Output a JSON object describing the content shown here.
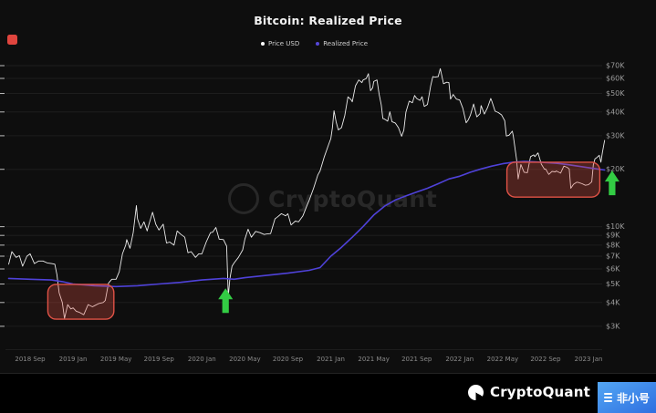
{
  "header": {
    "title": "Bitcoin: Realized Price"
  },
  "legend": {
    "items": [
      {
        "label": "Price USD",
        "color": "#ffffff"
      },
      {
        "label": "Realized Price",
        "color": "#5547d8"
      }
    ]
  },
  "watermark": {
    "text": "CryptoQuant"
  },
  "footer": {
    "brand": "CryptoQuant",
    "badge_text": "非小号"
  },
  "chart_data": {
    "type": "line",
    "title": "Bitcoin: Realized Price",
    "y_scale": "log",
    "ylim": [
      2800,
      78000
    ],
    "x_unit": "months since 2018-09",
    "y_ticks": [
      [
        "$70K",
        70000
      ],
      [
        "$60K",
        60000
      ],
      [
        "$50K",
        50000
      ],
      [
        "$40K",
        40000
      ],
      [
        "$30K",
        30000
      ],
      [
        "$20K",
        20000
      ],
      [
        "$10K",
        10000
      ],
      [
        "$9K",
        9000
      ],
      [
        "$8K",
        8000
      ],
      [
        "$7K",
        7000
      ],
      [
        "$6K",
        6000
      ],
      [
        "$5K",
        5000
      ],
      [
        "$4K",
        4000
      ],
      [
        "$3K",
        3000
      ]
    ],
    "x_ticks": [
      [
        "2018 Sep",
        0
      ],
      [
        "2019 Jan",
        4
      ],
      [
        "2019 May",
        8
      ],
      [
        "2019 Sep",
        12
      ],
      [
        "2020 Jan",
        16
      ],
      [
        "2020 May",
        20
      ],
      [
        "2020 Sep",
        24
      ],
      [
        "2021 Jan",
        28
      ],
      [
        "2021 May",
        32
      ],
      [
        "2021 Sep",
        36
      ],
      [
        "2022 Jan",
        40
      ],
      [
        "2022 May",
        44
      ],
      [
        "2022 Sep",
        48
      ],
      [
        "2023 Jan",
        52
      ]
    ],
    "series": [
      {
        "name": "Price USD",
        "color": "#ebebeb",
        "width": 0.9,
        "points": [
          [
            -2.0,
            6350
          ],
          [
            -1.7,
            7400
          ],
          [
            -1.3,
            6900
          ],
          [
            -1.0,
            7050
          ],
          [
            -0.7,
            6200
          ],
          [
            -0.3,
            7000
          ],
          [
            0,
            7200
          ],
          [
            0.4,
            6400
          ],
          [
            0.8,
            6600
          ],
          [
            1.2,
            6600
          ],
          [
            1.6,
            6450
          ],
          [
            2.0,
            6400
          ],
          [
            2.3,
            6350
          ],
          [
            2.5,
            5600
          ],
          [
            2.7,
            4500
          ],
          [
            3.0,
            4000
          ],
          [
            3.2,
            3300
          ],
          [
            3.5,
            3900
          ],
          [
            3.8,
            3700
          ],
          [
            4.0,
            3750
          ],
          [
            4.3,
            3600
          ],
          [
            4.6,
            3550
          ],
          [
            5.0,
            3450
          ],
          [
            5.4,
            3900
          ],
          [
            5.8,
            3800
          ],
          [
            6.0,
            3850
          ],
          [
            6.4,
            3950
          ],
          [
            6.8,
            4000
          ],
          [
            7.0,
            4100
          ],
          [
            7.3,
            5050
          ],
          [
            7.6,
            5300
          ],
          [
            8.0,
            5300
          ],
          [
            8.3,
            5800
          ],
          [
            8.6,
            7200
          ],
          [
            8.9,
            8000
          ],
          [
            9.0,
            8550
          ],
          [
            9.3,
            7700
          ],
          [
            9.6,
            9300
          ],
          [
            9.9,
            12900
          ],
          [
            10.0,
            11000
          ],
          [
            10.3,
            9800
          ],
          [
            10.6,
            10600
          ],
          [
            10.9,
            9500
          ],
          [
            11.0,
            10000
          ],
          [
            11.4,
            11900
          ],
          [
            11.7,
            10300
          ],
          [
            12.0,
            9600
          ],
          [
            12.4,
            10300
          ],
          [
            12.7,
            8200
          ],
          [
            13.0,
            8300
          ],
          [
            13.4,
            8000
          ],
          [
            13.7,
            9500
          ],
          [
            14.0,
            9150
          ],
          [
            14.4,
            8800
          ],
          [
            14.7,
            7300
          ],
          [
            15.0,
            7400
          ],
          [
            15.4,
            6900
          ],
          [
            15.7,
            7200
          ],
          [
            16.0,
            7200
          ],
          [
            16.4,
            8300
          ],
          [
            16.8,
            9300
          ],
          [
            17.0,
            9350
          ],
          [
            17.3,
            9900
          ],
          [
            17.6,
            8600
          ],
          [
            18.0,
            8550
          ],
          [
            18.3,
            7900
          ],
          [
            18.45,
            4300
          ],
          [
            18.6,
            5300
          ],
          [
            18.8,
            6200
          ],
          [
            19.0,
            6450
          ],
          [
            19.4,
            6900
          ],
          [
            19.8,
            7550
          ],
          [
            20.0,
            8600
          ],
          [
            20.3,
            9700
          ],
          [
            20.6,
            8800
          ],
          [
            21.0,
            9450
          ],
          [
            21.4,
            9300
          ],
          [
            21.8,
            9100
          ],
          [
            22.0,
            9150
          ],
          [
            22.4,
            9200
          ],
          [
            22.8,
            11000
          ],
          [
            23.0,
            11200
          ],
          [
            23.4,
            11700
          ],
          [
            23.8,
            11400
          ],
          [
            24.0,
            11700
          ],
          [
            24.3,
            10200
          ],
          [
            24.7,
            10700
          ],
          [
            25.0,
            10600
          ],
          [
            25.4,
            11400
          ],
          [
            25.8,
            13000
          ],
          [
            26.0,
            13800
          ],
          [
            26.4,
            15900
          ],
          [
            26.8,
            18700
          ],
          [
            27.0,
            19600
          ],
          [
            27.4,
            23300
          ],
          [
            27.8,
            27000
          ],
          [
            28.0,
            29000
          ],
          [
            28.15,
            33000
          ],
          [
            28.3,
            40600
          ],
          [
            28.5,
            35500
          ],
          [
            28.7,
            32200
          ],
          [
            29.0,
            33100
          ],
          [
            29.3,
            38300
          ],
          [
            29.6,
            48000
          ],
          [
            29.9,
            46300
          ],
          [
            30.0,
            45200
          ],
          [
            30.3,
            54900
          ],
          [
            30.6,
            58900
          ],
          [
            30.9,
            57000
          ],
          [
            31.0,
            58800
          ],
          [
            31.3,
            59900
          ],
          [
            31.5,
            63500
          ],
          [
            31.7,
            51700
          ],
          [
            31.9,
            53600
          ],
          [
            32.0,
            57800
          ],
          [
            32.3,
            58900
          ],
          [
            32.5,
            49700
          ],
          [
            32.7,
            43500
          ],
          [
            32.85,
            37000
          ],
          [
            33.0,
            36700
          ],
          [
            33.3,
            35800
          ],
          [
            33.5,
            40100
          ],
          [
            33.7,
            35600
          ],
          [
            34.0,
            35000
          ],
          [
            34.3,
            33100
          ],
          [
            34.6,
            29800
          ],
          [
            34.8,
            32100
          ],
          [
            35.0,
            39900
          ],
          [
            35.3,
            45600
          ],
          [
            35.6,
            44700
          ],
          [
            35.8,
            48800
          ],
          [
            36.0,
            47100
          ],
          [
            36.3,
            46000
          ],
          [
            36.5,
            48100
          ],
          [
            36.7,
            42800
          ],
          [
            37.0,
            43800
          ],
          [
            37.3,
            54700
          ],
          [
            37.5,
            61300
          ],
          [
            37.7,
            60900
          ],
          [
            38.0,
            61300
          ],
          [
            38.2,
            67500
          ],
          [
            38.5,
            56300
          ],
          [
            38.8,
            57300
          ],
          [
            39.0,
            57000
          ],
          [
            39.15,
            46700
          ],
          [
            39.4,
            49400
          ],
          [
            39.7,
            46700
          ],
          [
            40.0,
            46200
          ],
          [
            40.3,
            41800
          ],
          [
            40.6,
            35100
          ],
          [
            40.8,
            36300
          ],
          [
            41.0,
            38500
          ],
          [
            41.3,
            44000
          ],
          [
            41.6,
            37700
          ],
          [
            41.9,
            39200
          ],
          [
            42.0,
            43200
          ],
          [
            42.3,
            39000
          ],
          [
            42.6,
            42200
          ],
          [
            42.9,
            47100
          ],
          [
            43.0,
            45500
          ],
          [
            43.3,
            40400
          ],
          [
            43.6,
            39700
          ],
          [
            43.9,
            38600
          ],
          [
            44.0,
            37700
          ],
          [
            44.2,
            36000
          ],
          [
            44.35,
            29900
          ],
          [
            44.6,
            30200
          ],
          [
            44.9,
            31700
          ],
          [
            45.0,
            29900
          ],
          [
            45.3,
            22500
          ],
          [
            45.45,
            17800
          ],
          [
            45.7,
            21200
          ],
          [
            46.0,
            19300
          ],
          [
            46.3,
            19200
          ],
          [
            46.6,
            23300
          ],
          [
            46.9,
            23800
          ],
          [
            47.0,
            23300
          ],
          [
            47.3,
            24400
          ],
          [
            47.6,
            21300
          ],
          [
            47.9,
            20000
          ],
          [
            48.0,
            20100
          ],
          [
            48.3,
            18800
          ],
          [
            48.6,
            19500
          ],
          [
            48.9,
            19400
          ],
          [
            49.0,
            19600
          ],
          [
            49.4,
            19100
          ],
          [
            49.7,
            20800
          ],
          [
            50.0,
            20500
          ],
          [
            50.2,
            20100
          ],
          [
            50.35,
            15900
          ],
          [
            50.6,
            16700
          ],
          [
            50.9,
            17100
          ],
          [
            51.0,
            17100
          ],
          [
            51.4,
            16800
          ],
          [
            51.7,
            16500
          ],
          [
            52.0,
            16600
          ],
          [
            52.3,
            17200
          ],
          [
            52.45,
            21100
          ],
          [
            52.6,
            22700
          ],
          [
            52.8,
            23100
          ],
          [
            53.0,
            23700
          ],
          [
            53.15,
            21800
          ],
          [
            53.3,
            24600
          ],
          [
            53.5,
            28400
          ]
        ]
      },
      {
        "name": "Realized Price",
        "color": "#4f42d9",
        "width": 1.6,
        "points": [
          [
            -2,
            5350
          ],
          [
            0,
            5300
          ],
          [
            2,
            5250
          ],
          [
            3,
            5150
          ],
          [
            4,
            5000
          ],
          [
            6,
            4900
          ],
          [
            8,
            4850
          ],
          [
            10,
            4900
          ],
          [
            12,
            5000
          ],
          [
            14,
            5100
          ],
          [
            16,
            5250
          ],
          [
            18,
            5350
          ],
          [
            19,
            5300
          ],
          [
            20,
            5400
          ],
          [
            22,
            5550
          ],
          [
            24,
            5700
          ],
          [
            26,
            5900
          ],
          [
            27,
            6100
          ],
          [
            28,
            7000
          ],
          [
            29,
            7800
          ],
          [
            30,
            8800
          ],
          [
            31,
            10000
          ],
          [
            32,
            11500
          ],
          [
            33,
            12800
          ],
          [
            34,
            13800
          ],
          [
            35,
            14500
          ],
          [
            36,
            15200
          ],
          [
            37,
            15900
          ],
          [
            38,
            16800
          ],
          [
            39,
            17800
          ],
          [
            40,
            18400
          ],
          [
            41,
            19300
          ],
          [
            42,
            20100
          ],
          [
            43,
            20800
          ],
          [
            44,
            21400
          ],
          [
            45,
            21800
          ],
          [
            46,
            22000
          ],
          [
            47,
            21900
          ],
          [
            48,
            21700
          ],
          [
            49,
            21500
          ],
          [
            50,
            21200
          ],
          [
            51,
            20800
          ],
          [
            52,
            20400
          ],
          [
            53,
            20000
          ],
          [
            53.5,
            19850
          ]
        ]
      }
    ],
    "annotations": {
      "boxes": [
        {
          "x0": 1.65,
          "x1": 7.8,
          "y_top": 4980,
          "y_bottom": 3270
        },
        {
          "x0": 44.4,
          "x1": 53.05,
          "y_top": 21800,
          "y_bottom": 14300
        }
      ],
      "arrows": [
        {
          "x": 18.2,
          "tip_value": 4750
        },
        {
          "x": 54.2,
          "tip_value": 19700
        }
      ],
      "box_fill": "rgba(224,82,70,0.30)",
      "box_stroke": "#e05246",
      "arrow_color": "#33cc44"
    }
  }
}
